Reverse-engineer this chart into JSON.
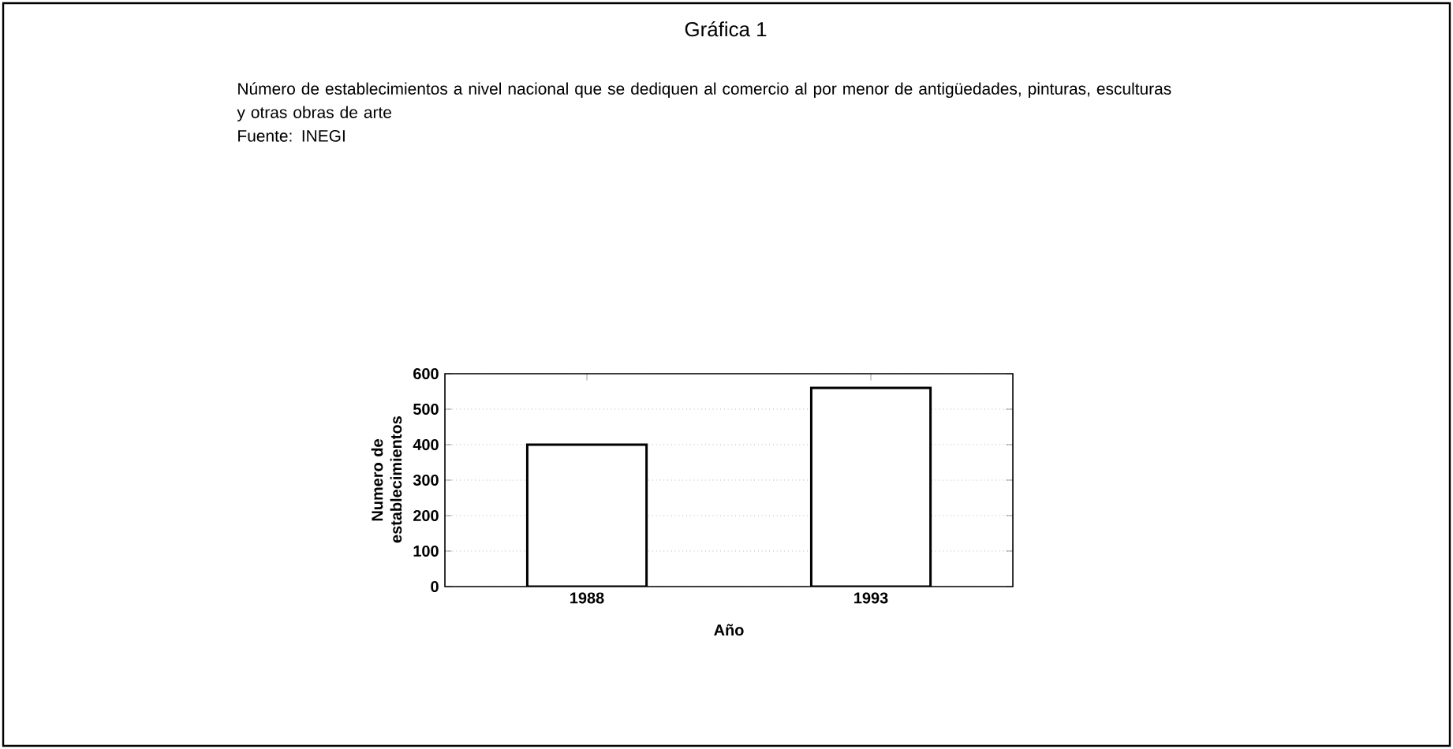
{
  "chart_data": {
    "type": "bar",
    "title": "Gráfica 1",
    "subtitle": "Número de establecimientos a nivel nacional que se dediquen al comercio al por menor de antigüedades, pinturas, esculturas y otras obras de arte",
    "annotations": [
      "Fuente: INEGI"
    ],
    "categories": [
      "1988",
      "1993"
    ],
    "values": [
      400,
      560
    ],
    "color": "#ffffff",
    "xlabel": "Año",
    "ylabel": "Numero de establecimientos",
    "ylim": [
      0,
      600
    ],
    "yticks": [
      0,
      100,
      200,
      300,
      400,
      500,
      600
    ],
    "grid": "y"
  }
}
